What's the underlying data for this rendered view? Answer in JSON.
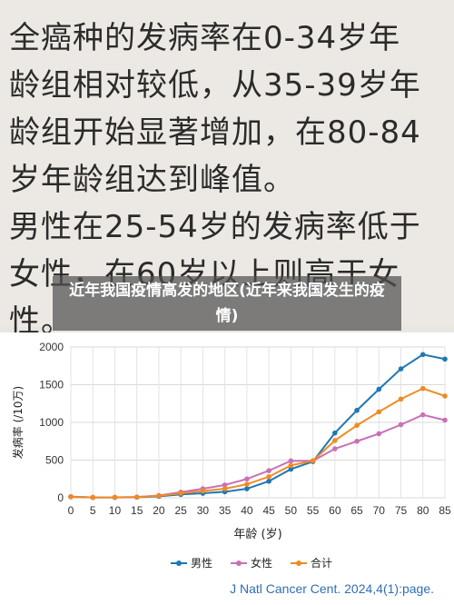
{
  "handwritten_note": {
    "text": "全癌种的发病率在0-34岁年\n龄组相对较低，从35-39岁年\n龄组开始显著增加，在80-84\n岁年龄组达到峰值。\n男性在25-54岁的发病率低于\n女性，在60岁以上则高于女\n性。"
  },
  "banner": {
    "title": "近年我国疫情高发的地区(近年来我国发生的疫情)"
  },
  "attribution": {
    "text": "J Natl Cancer Cent. 2024,4(1):page."
  },
  "chart_data": {
    "type": "line",
    "title": "",
    "xlabel": "年龄 (岁)",
    "ylabel": "发病率 (/10万)",
    "x": [
      0,
      5,
      10,
      15,
      20,
      25,
      30,
      35,
      40,
      45,
      50,
      55,
      60,
      65,
      70,
      75,
      80,
      85
    ],
    "xlim": [
      0,
      85
    ],
    "ylim": [
      0,
      2000
    ],
    "yticks": [
      0,
      500,
      1000,
      1500,
      2000
    ],
    "grid": true,
    "legend_position": "bottom",
    "series": [
      {
        "name": "男性",
        "color": "#1f77b4",
        "values": [
          15,
          5,
          5,
          8,
          20,
          45,
          60,
          80,
          120,
          220,
          380,
          480,
          860,
          1160,
          1440,
          1710,
          1900,
          1840
        ]
      },
      {
        "name": "女性",
        "color": "#c970b6",
        "values": [
          12,
          5,
          6,
          10,
          30,
          75,
          120,
          170,
          250,
          360,
          490,
          490,
          650,
          750,
          850,
          970,
          1100,
          1030
        ]
      },
      {
        "name": "合计",
        "color": "#f08a24",
        "values": [
          14,
          5,
          6,
          9,
          25,
          60,
          90,
          120,
          180,
          280,
          430,
          490,
          760,
          960,
          1140,
          1310,
          1450,
          1350
        ]
      }
    ]
  }
}
